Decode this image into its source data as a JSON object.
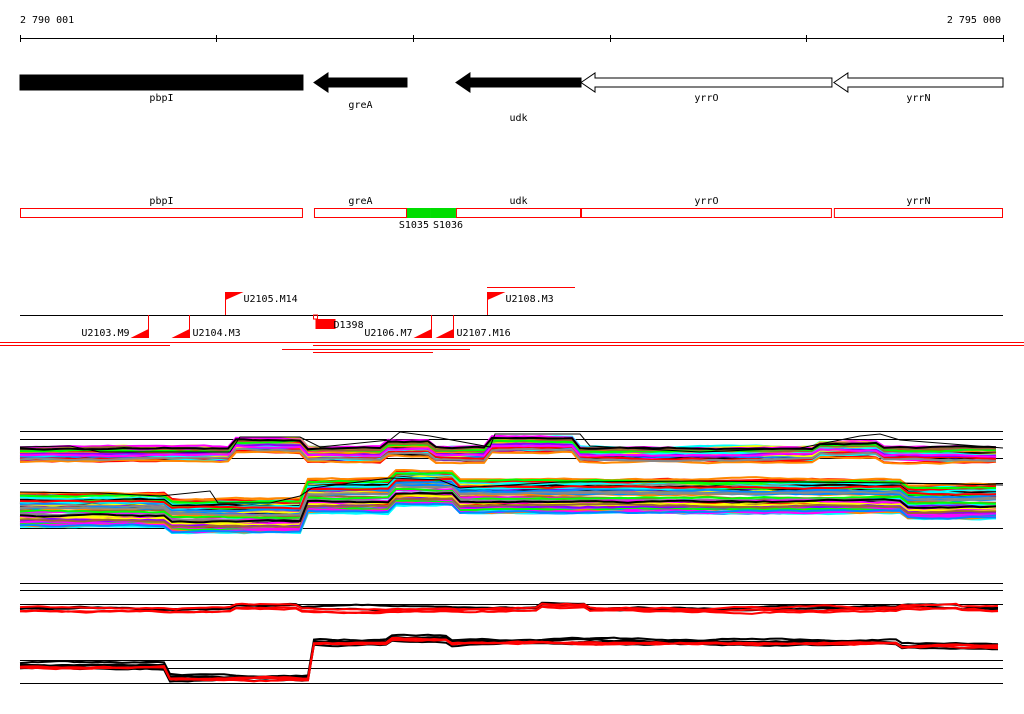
{
  "ruler": {
    "start_label": "2 790 001",
    "end_label": "2 795 000",
    "start": 2790001,
    "end": 2795000,
    "tick_step": 1000
  },
  "genes": [
    {
      "name": "pbpI",
      "start": 2790001,
      "end": 2791440,
      "strand": "+",
      "style": "filled"
    },
    {
      "name": "greA",
      "start": 2791496,
      "end": 2791969,
      "strand": "-",
      "style": "filled"
    },
    {
      "name": "udk",
      "start": 2792218,
      "end": 2792854,
      "strand": "-",
      "style": "filled"
    },
    {
      "name": "yrrO",
      "start": 2792854,
      "end": 2794130,
      "strand": "-",
      "style": "open"
    },
    {
      "name": "yrrN",
      "start": 2794140,
      "end": 2795000,
      "strand": "-",
      "style": "open"
    }
  ],
  "segments": [
    {
      "name": "S1035",
      "start": 2791969,
      "end": 2792091
    },
    {
      "name": "S1036",
      "start": 2792091,
      "end": 2792218
    }
  ],
  "markers": [
    {
      "name": "U2105.M14",
      "pos": 2791045,
      "dir": "up"
    },
    {
      "name": "U2108.M3",
      "pos": 2792376,
      "dir": "up"
    },
    {
      "name": "U2103.M9",
      "pos": 2790651,
      "dir": "down"
    },
    {
      "name": "U2104.M3",
      "pos": 2790860,
      "dir": "down"
    },
    {
      "name": "U2106.M7",
      "pos": 2792091,
      "dir": "down"
    },
    {
      "name": "U2107.M16",
      "pos": 2792203,
      "dir": "down"
    },
    {
      "name": "D1398",
      "pos": 2791501,
      "dir": "box"
    }
  ],
  "colors": {
    "gene": "#000000",
    "segment_border": "#ff0000",
    "segment_fill": "#00dd00",
    "marker": "#ff0000"
  }
}
